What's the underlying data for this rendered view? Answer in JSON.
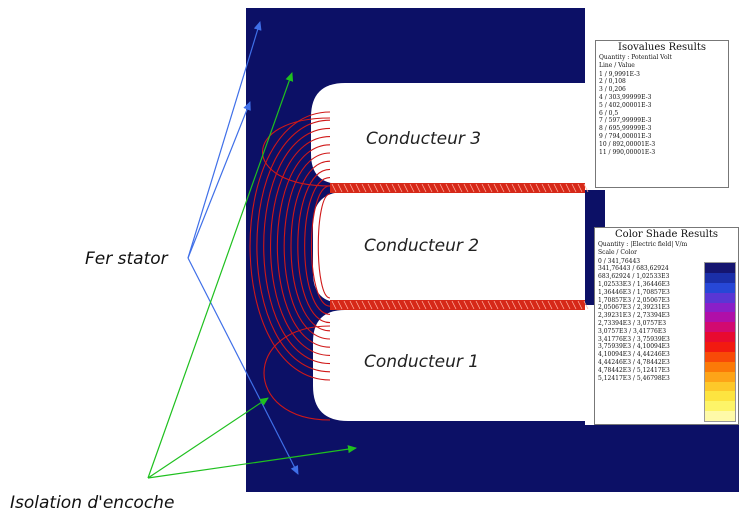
{
  "labels": {
    "fer_stator": "Fer stator",
    "isolation": "Isolation d'encoche",
    "conducteur_3": "Conducteur 3",
    "conducteur_2": "Conducteur 2",
    "conducteur_1": "Conducteur 1"
  },
  "isovalues": {
    "title": "Isovalues Results",
    "quantity": "Quantity : Potential Volt",
    "header": "Line / Value",
    "rows": [
      "1  /  9,9991E-3",
      "2  /  0,108",
      "3  /  0,206",
      "4  /  303,99999E-3",
      "5  /  402,00001E-3",
      "6  /  0,5",
      "7  /  597,99999E-3",
      "8  /  695,99999E-3",
      "9  /  794,00001E-3",
      "10  /  892,00001E-3",
      "11  /  990,00001E-3"
    ]
  },
  "colorshade": {
    "title": "Color Shade Results",
    "quantity": "Quantity : |Electric field| V/m",
    "header": "Scale / Color",
    "rows": [
      "0  /  341,76443",
      "341,76443  /  683,62924",
      "683,62924  /  1,02533E3",
      "1,02533E3  /  1,36446E3",
      "1,36446E3  /  1,70857E3",
      "1,70857E3  /  2,05067E3",
      "2,05067E3  /  2,39231E3",
      "2,39231E3  /  2,73394E3",
      "2,73394E3  /  3,0757E3",
      "3,0757E3  /  3,41776E3",
      "3,41776E3  /  3,75939E3",
      "3,75939E3  /  4,10094E3",
      "4,10094E3  /  4,44246E3",
      "4,44246E3  /  4,78442E3",
      "4,78442E3  /  5,12417E3",
      "5,12417E3  /  5,46798E3"
    ],
    "colors": [
      "#151570",
      "#1b2fa8",
      "#2747d6",
      "#5a36d4",
      "#8a1fc8",
      "#b00fa8",
      "#d20a70",
      "#e80a30",
      "#f21a10",
      "#f84a08",
      "#fb7a08",
      "#fda418",
      "#fdc82a",
      "#fde440",
      "#fdf468",
      "#fefaa8"
    ]
  },
  "colors": {
    "stator": "#0c1066",
    "slot": "#ffffff",
    "field_line": "#d01818",
    "arrow_blue": "#3f6fe8",
    "arrow_green": "#1fc01f"
  }
}
